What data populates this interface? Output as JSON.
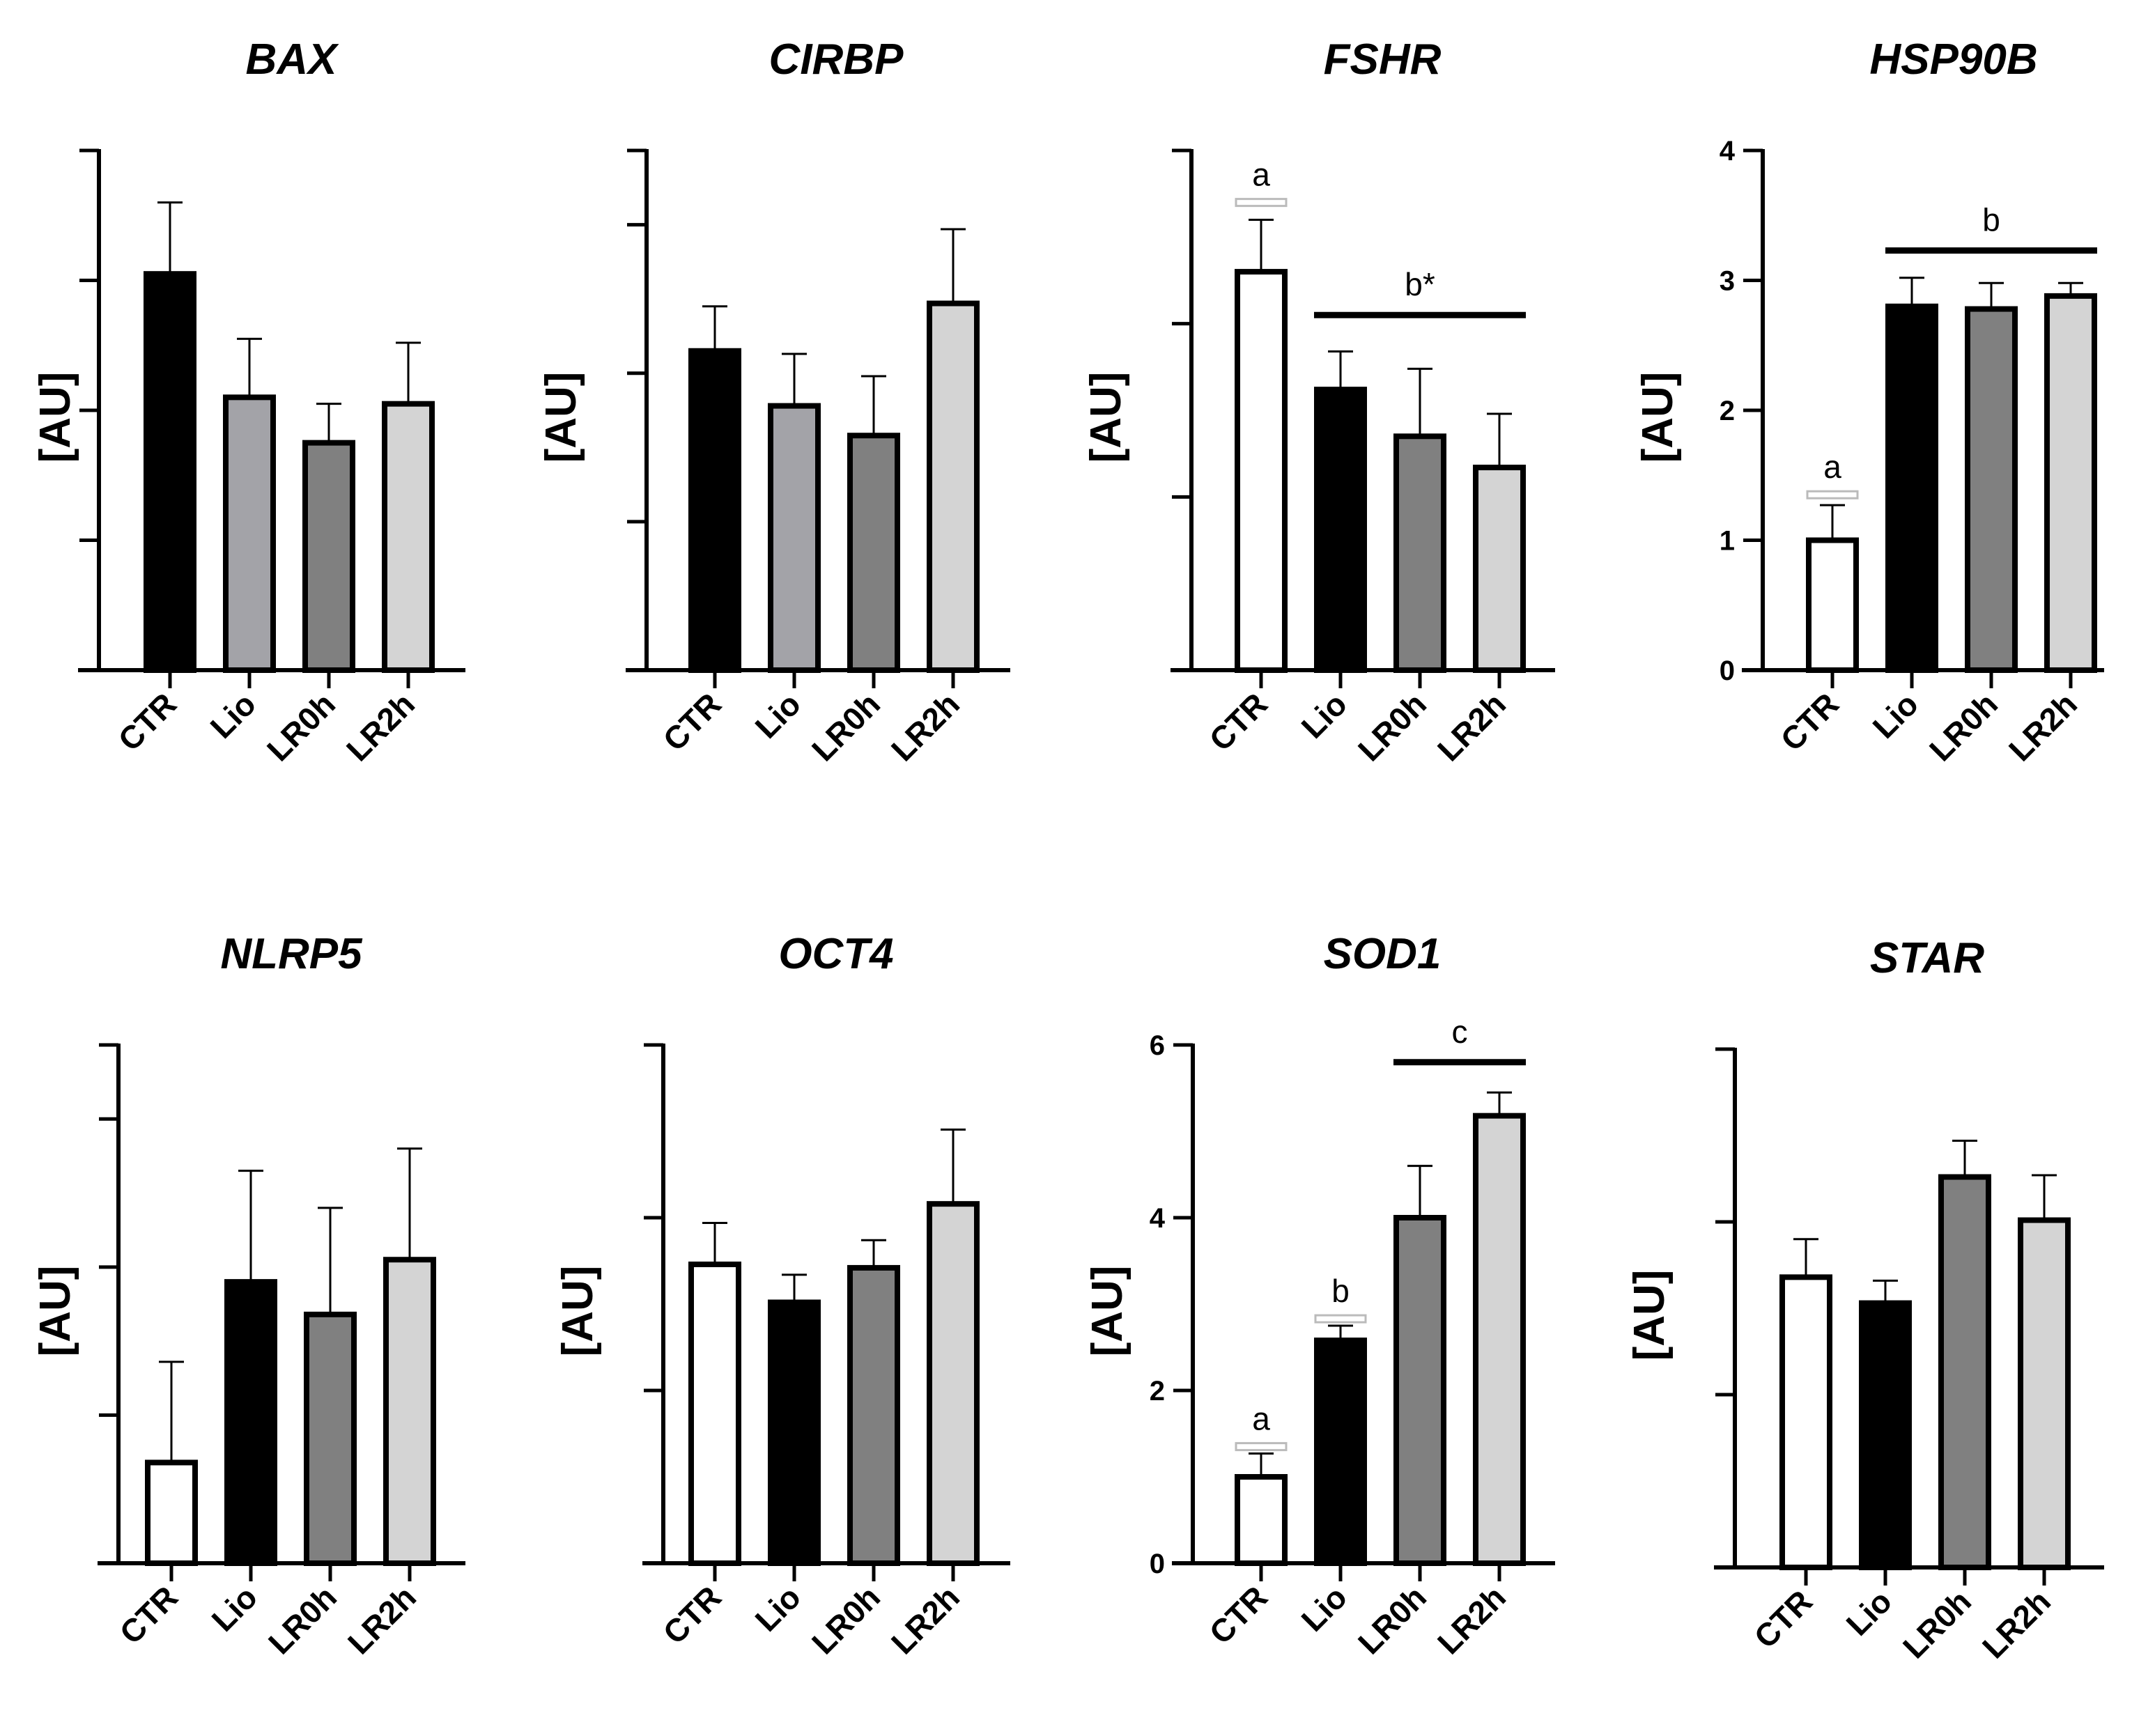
{
  "colors": {
    "CTR": "#ffffff",
    "Lio": "#000000",
    "LR0h": "#808080",
    "LR2h": "#d4d4d4",
    "Lio_light": "#a3a3a8"
  },
  "chart_data": [
    {
      "type": "bar",
      "title": "BAX",
      "ylabel": "[AU]",
      "categories": [
        "CTR",
        "Lio",
        "LR0h",
        "LR2h"
      ],
      "values": [
        3.05,
        2.1,
        1.75,
        2.05
      ],
      "errors": [
        0.55,
        0.45,
        0.3,
        0.47
      ],
      "colors": [
        "#000000",
        "#a3a3a8",
        "#808080",
        "#d4d4d4"
      ],
      "ylim": [
        0,
        4
      ],
      "yticks": [
        0,
        1,
        2,
        3,
        4
      ],
      "show_tick_labels": false,
      "annotations": []
    },
    {
      "type": "bar",
      "title": "CIRBP",
      "ylabel": "[AU]",
      "categories": [
        "CTR",
        "Lio",
        "LR0h",
        "LR2h"
      ],
      "values": [
        2.15,
        1.78,
        1.58,
        2.47
      ],
      "errors": [
        0.3,
        0.35,
        0.4,
        0.5
      ],
      "colors": [
        "#000000",
        "#a3a3a8",
        "#808080",
        "#d4d4d4"
      ],
      "ylim": [
        0,
        3.5
      ],
      "yticks": [
        0,
        1,
        2,
        3,
        3.5
      ],
      "show_tick_labels": false,
      "annotations": []
    },
    {
      "type": "bar",
      "title": "FSHR",
      "ylabel": "[AU]",
      "categories": [
        "CTR",
        "Lio",
        "LR0h",
        "LR2h"
      ],
      "values": [
        2.3,
        1.62,
        1.35,
        1.17
      ],
      "errors": [
        0.3,
        0.22,
        0.39,
        0.31
      ],
      "colors": [
        "#ffffff",
        "#000000",
        "#808080",
        "#d4d4d4"
      ],
      "ylim": [
        0,
        3
      ],
      "yticks": [
        0,
        1,
        2,
        3
      ],
      "show_tick_labels": false,
      "annotations": [
        {
          "label": "a",
          "from": 0,
          "to": 0,
          "y": 2.7,
          "boxed": true
        },
        {
          "label": "b*",
          "from": 1,
          "to": 3,
          "y": 2.05,
          "boxed": false
        }
      ]
    },
    {
      "type": "bar",
      "title": "HSP90B",
      "ylabel": "[AU]",
      "categories": [
        "CTR",
        "Lio",
        "LR0h",
        "LR2h"
      ],
      "values": [
        1.0,
        2.8,
        2.78,
        2.88
      ],
      "errors": [
        0.27,
        0.22,
        0.2,
        0.1
      ],
      "colors": [
        "#ffffff",
        "#000000",
        "#808080",
        "#d4d4d4"
      ],
      "ylim": [
        0,
        4
      ],
      "yticks": [
        0,
        1,
        2,
        3,
        4
      ],
      "show_tick_labels": true,
      "annotations": [
        {
          "label": "a",
          "from": 0,
          "to": 0,
          "y": 1.35,
          "boxed": true
        },
        {
          "label": "b",
          "from": 1,
          "to": 3,
          "y": 3.23,
          "boxed": false
        }
      ]
    },
    {
      "type": "bar",
      "title": "NLRP5",
      "ylabel": "[AU]",
      "categories": [
        "CTR",
        "Lio",
        "LR0h",
        "LR2h"
      ],
      "values": [
        0.68,
        1.9,
        1.68,
        2.05
      ],
      "errors": [
        0.68,
        0.75,
        0.72,
        0.75
      ],
      "colors": [
        "#ffffff",
        "#000000",
        "#808080",
        "#d4d4d4"
      ],
      "ylim": [
        0,
        3.5
      ],
      "yticks": [
        0,
        1,
        2,
        3,
        3.5
      ],
      "show_tick_labels": false,
      "annotations": []
    },
    {
      "type": "bar",
      "title": "OCT4",
      "ylabel": "[AU]",
      "categories": [
        "CTR",
        "Lio",
        "LR0h",
        "LR2h"
      ],
      "values": [
        1.73,
        1.51,
        1.71,
        2.08
      ],
      "errors": [
        0.24,
        0.16,
        0.16,
        0.43
      ],
      "colors": [
        "#ffffff",
        "#000000",
        "#808080",
        "#d4d4d4"
      ],
      "ylim": [
        0,
        3
      ],
      "yticks": [
        0,
        1,
        2,
        3
      ],
      "show_tick_labels": false,
      "annotations": []
    },
    {
      "type": "bar",
      "title": "SOD1",
      "ylabel": "[AU]",
      "categories": [
        "CTR",
        "Lio",
        "LR0h",
        "LR2h"
      ],
      "values": [
        1.0,
        2.58,
        4.0,
        5.18
      ],
      "errors": [
        0.27,
        0.17,
        0.6,
        0.27
      ],
      "colors": [
        "#ffffff",
        "#000000",
        "#808080",
        "#d4d4d4"
      ],
      "ylim": [
        0,
        6
      ],
      "yticks": [
        0,
        2,
        4,
        6
      ],
      "show_tick_labels": true,
      "annotations": [
        {
          "label": "a",
          "from": 0,
          "to": 0,
          "y": 1.35,
          "boxed": true
        },
        {
          "label": "b",
          "from": 1,
          "to": 1,
          "y": 2.83,
          "boxed": true
        },
        {
          "label": "c",
          "from": 2,
          "to": 3,
          "y": 5.8,
          "boxed": false
        }
      ]
    },
    {
      "type": "bar",
      "title": "STAR",
      "ylabel": "[AU]",
      "categories": [
        "CTR",
        "Lio",
        "LR0h",
        "LR2h"
      ],
      "values": [
        1.68,
        1.53,
        2.26,
        2.01
      ],
      "errors": [
        0.22,
        0.13,
        0.21,
        0.26
      ],
      "colors": [
        "#ffffff",
        "#000000",
        "#808080",
        "#d4d4d4"
      ],
      "ylim": [
        0,
        3
      ],
      "yticks": [
        0,
        1,
        2,
        3
      ],
      "show_tick_labels": false,
      "annotations": []
    }
  ]
}
